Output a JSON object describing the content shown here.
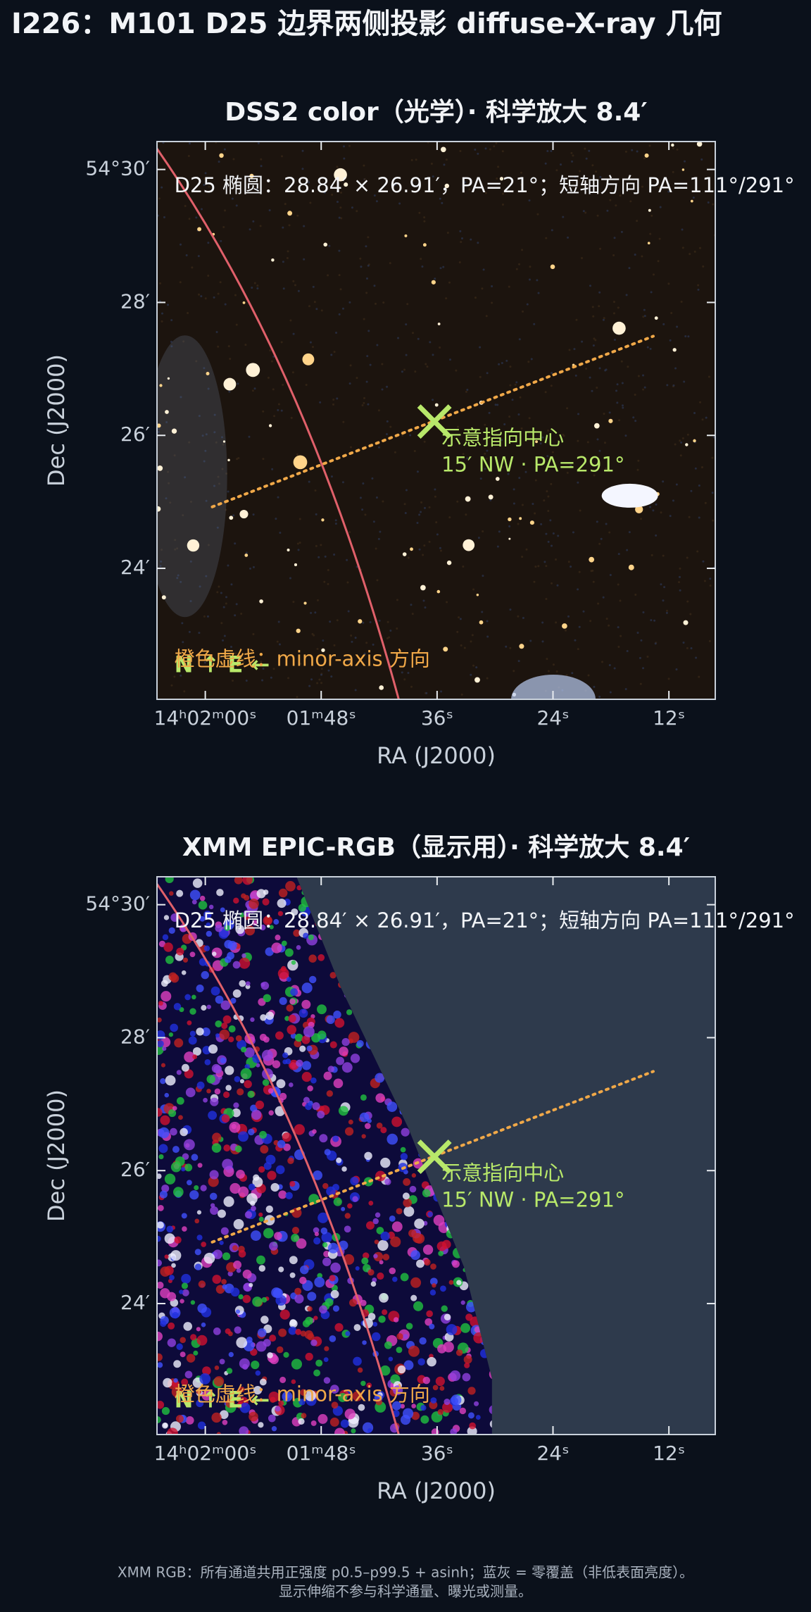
{
  "title": "I226：M101 D25 边界两侧投影 diffuse-X-ray 几何",
  "chart_data": [
    {
      "type": "image",
      "title": "DSS2 color（光学）· 科学放大 8.4′",
      "annotation": "D25 椭圆：28.84′ × 26.91′，PA=21°；短轴方向 PA=111°/291°",
      "pointing_label": [
        "示意指向中心",
        "15′ NW · PA=291°"
      ],
      "line_label": "橙色虚线：minor-axis 方向",
      "compass": "N ↑ E ←",
      "x_label": "RA (J2000)",
      "y_label": "Dec (J2000)",
      "xlim": [
        125.0,
        67.2
      ],
      "xticks": [
        {
          "value": 120,
          "label": "14ʰ02ᵐ00ˢ"
        },
        {
          "value": 108,
          "label": "01ᵐ48ˢ"
        },
        {
          "value": 96,
          "label": "36ˢ"
        },
        {
          "value": 84,
          "label": "24ˢ"
        },
        {
          "value": 72,
          "label": "12ˢ"
        }
      ],
      "ylim": [
        22.03,
        30.42
      ],
      "yticks": [
        {
          "value": 30,
          "label": "54°30′"
        },
        {
          "value": 28,
          "label": "28′"
        },
        {
          "value": 26,
          "label": "26′"
        },
        {
          "value": 24,
          "label": "24′"
        }
      ]
    },
    {
      "type": "image",
      "title": "XMM EPIC-RGB（显示用）· 科学放大 8.4′",
      "annotation": "D25 椭圆：28.84′ × 26.91′，PA=21°；短轴方向 PA=111°/291°",
      "pointing_label": [
        "示意指向中心",
        "15′ NW · PA=291°"
      ],
      "line_label": "橙色虚线：minor-axis 方向",
      "compass": "N ↑ E ←",
      "x_label": "RA (J2000)",
      "y_label": "Dec (J2000)",
      "xlim": [
        125.0,
        67.2
      ],
      "xticks": [
        {
          "value": 120,
          "label": "14ʰ02ᵐ00ˢ"
        },
        {
          "value": 108,
          "label": "01ᵐ48ˢ"
        },
        {
          "value": 96,
          "label": "36ˢ"
        },
        {
          "value": 84,
          "label": "24ˢ"
        },
        {
          "value": 72,
          "label": "12ˢ"
        }
      ],
      "ylim": [
        22.03,
        30.42
      ],
      "yticks": [
        {
          "value": 30,
          "label": "54°30′"
        },
        {
          "value": 28,
          "label": "28′"
        },
        {
          "value": 26,
          "label": "26′"
        },
        {
          "value": 24,
          "label": "24′"
        }
      ]
    }
  ],
  "footer": [
    "XMM RGB：所有通道共用正强度 p0.5–p99.5 + asinh；蓝灰 = 零覆盖（非低表面亮度）。",
    "显示伸缩不参与科学通量、曝光或测量。"
  ]
}
